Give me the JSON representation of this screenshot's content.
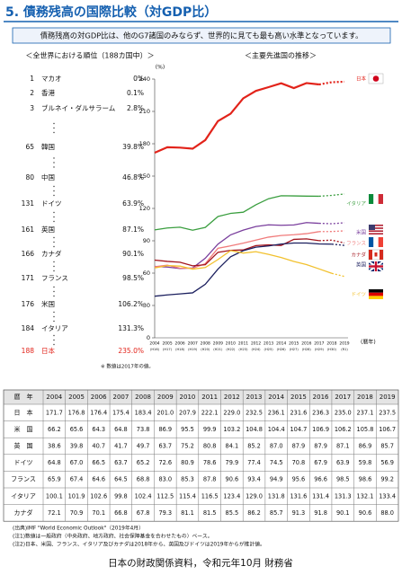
{
  "header": {
    "title": "5. 債務残高の国際比較（対GDP比）",
    "summary": "債務残高の対GDP比は、他のG7諸国のみならず、世界的に見ても最も高い水準となっています。"
  },
  "ranking": {
    "title": "＜全世界における順位（188カ国中）＞",
    "note": "※ 数値は2017年の値。",
    "rows": [
      {
        "rank": "1",
        "country": "マカオ",
        "value": "0%"
      },
      {
        "rank": "2",
        "country": "香港",
        "value": "0.1%"
      },
      {
        "rank": "3",
        "country": "ブルネイ・ダルサラーム",
        "value": "2.8%"
      },
      {
        "rank": "65",
        "country": "韓国",
        "value": "39.8%"
      },
      {
        "rank": "80",
        "country": "中国",
        "value": "46.8%"
      },
      {
        "rank": "131",
        "country": "ドイツ",
        "value": "63.9%"
      },
      {
        "rank": "161",
        "country": "英国",
        "value": "87.1%"
      },
      {
        "rank": "166",
        "country": "カナダ",
        "value": "90.1%"
      },
      {
        "rank": "171",
        "country": "フランス",
        "value": "98.5%"
      },
      {
        "rank": "176",
        "country": "米国",
        "value": "106.2%"
      },
      {
        "rank": "184",
        "country": "イタリア",
        "value": "131.3%"
      },
      {
        "rank": "188",
        "country": "日本",
        "value": "235.0%",
        "highlight": true
      }
    ]
  },
  "chart_data": {
    "type": "line",
    "title": "＜主要先進国の推移＞",
    "y_label": "(%)",
    "x_label": "(暦年)",
    "x": [
      "2004",
      "2005",
      "2006",
      "2007",
      "2008",
      "2009",
      "2010",
      "2011",
      "2012",
      "2013",
      "2014",
      "2015",
      "2016",
      "2017",
      "2018",
      "2019"
    ],
    "x_era": [
      "(H16)",
      "(H17)",
      "(H18)",
      "(H19)",
      "(H20)",
      "(H21)",
      "(H22)",
      "(H23)",
      "(H24)",
      "(H25)",
      "(H26)",
      "(H27)",
      "(H28)",
      "(H29)",
      "(H30)",
      "(R1)"
    ],
    "ylim": [
      0,
      240
    ],
    "yticks": [
      0,
      30,
      60,
      90,
      120,
      150,
      180,
      210,
      240
    ],
    "series": [
      {
        "name": "日本",
        "color": "#e2231a",
        "dashed_from": "2018",
        "values": [
          171.7,
          176.8,
          176.4,
          175.4,
          183.4,
          201.0,
          207.9,
          222.1,
          229.0,
          232.5,
          236.1,
          231.6,
          236.3,
          235.0,
          237.1,
          237.5
        ]
      },
      {
        "name": "イタリア",
        "color": "#3a9e3f",
        "dashed_from": "2018",
        "values": [
          100.1,
          101.9,
          102.6,
          99.8,
          102.4,
          112.5,
          115.4,
          116.5,
          123.4,
          129.0,
          131.8,
          131.6,
          131.4,
          131.3,
          132.1,
          133.4
        ]
      },
      {
        "name": "米国",
        "color": "#7a3f9d",
        "dashed_from": "2018",
        "values": [
          66.2,
          65.6,
          64.3,
          64.8,
          73.8,
          86.9,
          95.5,
          99.9,
          103.2,
          104.8,
          104.4,
          104.7,
          106.9,
          106.2,
          105.8,
          106.7
        ]
      },
      {
        "name": "フランス",
        "color": "#f07b7b",
        "dashed_from": "2018",
        "values": [
          65.9,
          67.4,
          64.6,
          64.5,
          68.8,
          83.0,
          85.3,
          87.8,
          90.6,
          93.4,
          94.9,
          95.6,
          96.6,
          98.5,
          98.6,
          99.2
        ]
      },
      {
        "name": "カナダ",
        "color": "#a3141c",
        "dashed_from": "2018",
        "values": [
          72.1,
          70.9,
          70.1,
          66.8,
          67.8,
          79.3,
          81.1,
          81.5,
          85.5,
          86.2,
          85.7,
          91.3,
          91.8,
          90.1,
          90.6,
          88.0
        ]
      },
      {
        "name": "英国",
        "color": "#1b1f5e",
        "dashed_from": "2019",
        "values": [
          38.6,
          39.8,
          40.7,
          41.7,
          49.7,
          63.7,
          75.2,
          80.8,
          84.1,
          85.2,
          87.0,
          87.9,
          87.9,
          87.1,
          86.9,
          85.7
        ]
      },
      {
        "name": "ドイツ",
        "color": "#f2c12e",
        "dashed_from": "2019",
        "values": [
          64.8,
          67.0,
          66.5,
          63.7,
          65.2,
          72.6,
          80.9,
          78.6,
          79.9,
          77.4,
          74.5,
          70.8,
          67.9,
          63.9,
          59.8,
          56.9
        ]
      }
    ]
  },
  "table": {
    "header": [
      "暦　年",
      "2004",
      "2005",
      "2006",
      "2007",
      "2008",
      "2009",
      "2010",
      "2011",
      "2012",
      "2013",
      "2014",
      "2015",
      "2016",
      "2017",
      "2018",
      "2019"
    ],
    "rows": [
      [
        "日　本",
        "171.7",
        "176.8",
        "176.4",
        "175.4",
        "183.4",
        "201.0",
        "207.9",
        "222.1",
        "229.0",
        "232.5",
        "236.1",
        "231.6",
        "236.3",
        "235.0",
        "237.1",
        "237.5"
      ],
      [
        "米　国",
        "66.2",
        "65.6",
        "64.3",
        "64.8",
        "73.8",
        "86.9",
        "95.5",
        "99.9",
        "103.2",
        "104.8",
        "104.4",
        "104.7",
        "106.9",
        "106.2",
        "105.8",
        "106.7"
      ],
      [
        "英　国",
        "38.6",
        "39.8",
        "40.7",
        "41.7",
        "49.7",
        "63.7",
        "75.2",
        "80.8",
        "84.1",
        "85.2",
        "87.0",
        "87.9",
        "87.9",
        "87.1",
        "86.9",
        "85.7"
      ],
      [
        "ドイツ",
        "64.8",
        "67.0",
        "66.5",
        "63.7",
        "65.2",
        "72.6",
        "80.9",
        "78.6",
        "79.9",
        "77.4",
        "74.5",
        "70.8",
        "67.9",
        "63.9",
        "59.8",
        "56.9"
      ],
      [
        "フランス",
        "65.9",
        "67.4",
        "64.6",
        "64.5",
        "68.8",
        "83.0",
        "85.3",
        "87.8",
        "90.6",
        "93.4",
        "94.9",
        "95.6",
        "96.6",
        "98.5",
        "98.6",
        "99.2"
      ],
      [
        "イタリア",
        "100.1",
        "101.9",
        "102.6",
        "99.8",
        "102.4",
        "112.5",
        "115.4",
        "116.5",
        "123.4",
        "129.0",
        "131.8",
        "131.6",
        "131.4",
        "131.3",
        "132.1",
        "133.4"
      ],
      [
        "カナダ",
        "72.1",
        "70.9",
        "70.1",
        "66.8",
        "67.8",
        "79.3",
        "81.1",
        "81.5",
        "85.5",
        "86.2",
        "85.7",
        "91.3",
        "91.8",
        "90.1",
        "90.6",
        "88.0"
      ]
    ]
  },
  "notes": [
    "(出典)IMF \"World Economic Outlook\"（2019年4月）",
    "(注1)数値は一般政府（中央政府、地方政府、社会保障基金を合わせたもの）ベース。",
    "(注2)日本、米国、フランス、イタリア及びカナダは2018年から、英国及びドイツは2019年からが推計値。"
  ],
  "footer": "日本の財政関係資料，令和元年10月 財務省"
}
